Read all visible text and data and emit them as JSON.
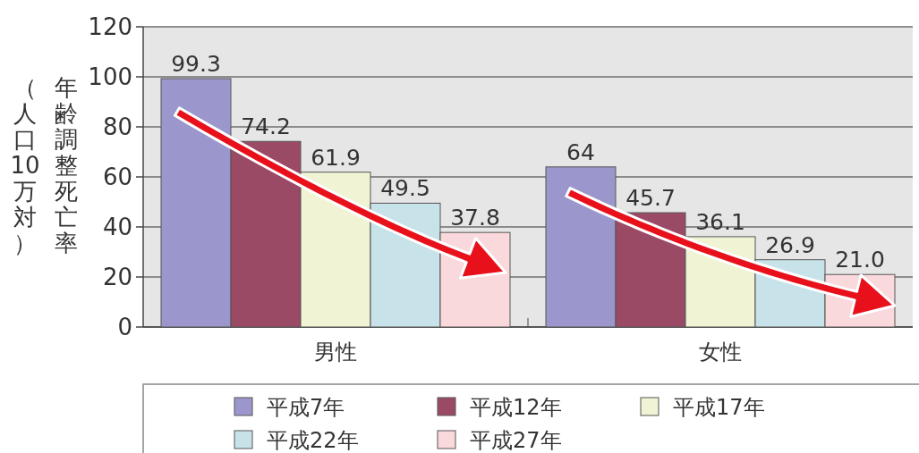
{
  "chart_data": {
    "type": "bar",
    "ylabel": "年齢調整死亡率（人口10万対）",
    "categories": [
      "男性",
      "女性"
    ],
    "series": [
      {
        "name": "平成7年",
        "color": "#9b97cc",
        "values": [
          99.3,
          64
        ],
        "value_labels": [
          "99.3",
          "64"
        ]
      },
      {
        "name": "平成12年",
        "color": "#9b4a66",
        "values": [
          74.2,
          45.7
        ],
        "value_labels": [
          "74.2",
          "45.7"
        ]
      },
      {
        "name": "平成17年",
        "color": "#f0f3d4",
        "values": [
          61.9,
          36.1
        ],
        "value_labels": [
          "61.9",
          "36.1"
        ]
      },
      {
        "name": "平成22年",
        "color": "#c8e2ea",
        "values": [
          49.5,
          26.9
        ],
        "value_labels": [
          "49.5",
          "26.9"
        ]
      },
      {
        "name": "平成27年",
        "color": "#f9d9dc",
        "values": [
          37.8,
          21.0
        ],
        "value_labels": [
          "37.8",
          "21.0"
        ]
      }
    ],
    "ylim": [
      0,
      120
    ],
    "yticks": [
      0,
      20,
      40,
      60,
      80,
      100,
      120
    ],
    "grid": "y",
    "legend": "bottom"
  }
}
